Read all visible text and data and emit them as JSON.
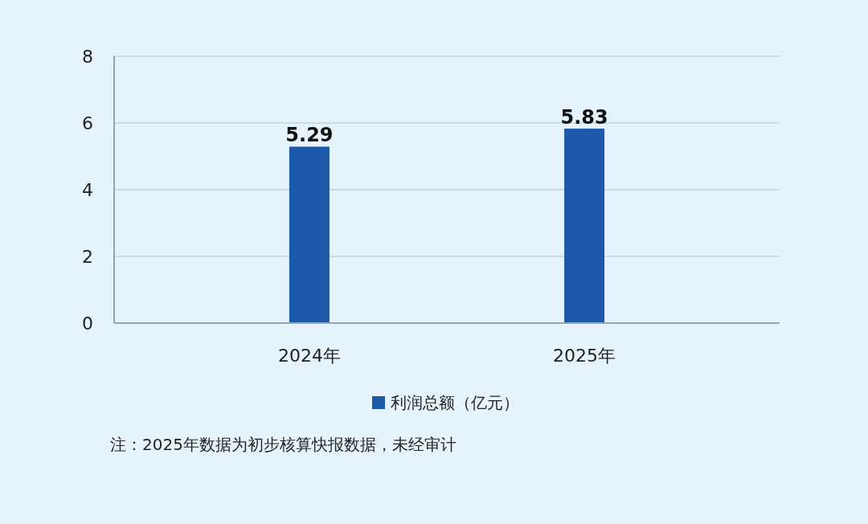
{
  "chart_data": {
    "type": "bar",
    "categories": [
      "2024年",
      "2025年"
    ],
    "series": [
      {
        "name": "利润总额（亿元）",
        "color": "#1e5aab",
        "values": [
          5.29,
          5.83
        ]
      }
    ],
    "ylim": [
      0,
      8
    ],
    "yticks": [
      0,
      2,
      4,
      6,
      8
    ],
    "grid": "y",
    "data_labels": true,
    "legend": "bottom",
    "annotations": [
      "注：2025年数据为初步核算快报数据，未经审计"
    ]
  }
}
